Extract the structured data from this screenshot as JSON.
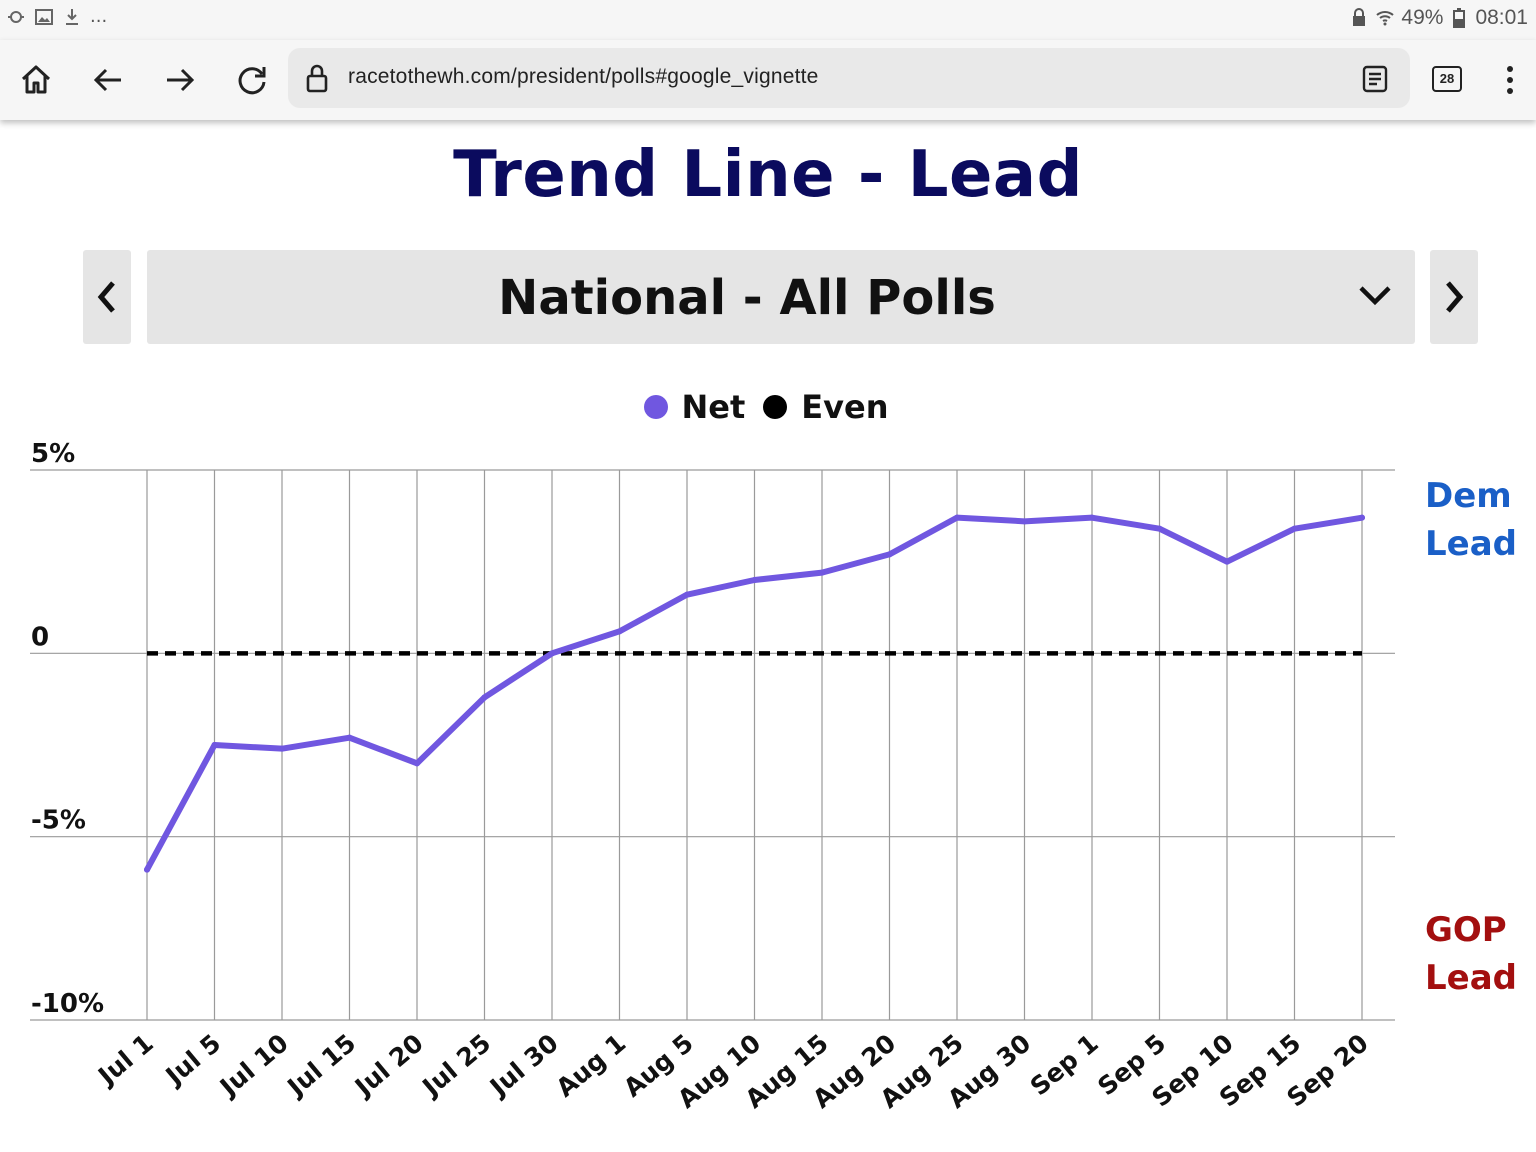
{
  "status_bar": {
    "left_icons": [
      "sync-icon",
      "image-icon",
      "download-icon"
    ],
    "more": "...",
    "battery_percent": "49%",
    "time": "08:01"
  },
  "browser": {
    "url": "racetothewh.com/president/polls#google_vignette",
    "tab_count": "28"
  },
  "page": {
    "title": "Trend Line - Lead",
    "selector": {
      "selected": "National - All Polls"
    },
    "side_labels": {
      "dem": {
        "line1": "Dem",
        "line2": "Lead",
        "color": "#1a5fc7"
      },
      "gop": {
        "line1": "GOP",
        "line2": "Lead",
        "color": "#a30f0f"
      }
    }
  },
  "chart_data": {
    "type": "line",
    "categories": [
      "Jul 1",
      "Jul 5",
      "Jul 10",
      "Jul 15",
      "Jul 20",
      "Jul 25",
      "Jul 30",
      "Aug 1",
      "Aug 5",
      "Aug 10",
      "Aug 15",
      "Aug 20",
      "Aug 25",
      "Aug 30",
      "Sep 1",
      "Sep 5",
      "Sep 10",
      "Sep 15",
      "Sep 20"
    ],
    "series": [
      {
        "name": "Net",
        "color": "#7057e0",
        "values": [
          -5.9,
          -2.5,
          -2.6,
          -2.3,
          -3.0,
          -1.2,
          0.0,
          0.6,
          1.6,
          2.0,
          2.2,
          2.7,
          3.7,
          3.6,
          3.7,
          3.4,
          2.5,
          3.4,
          3.7
        ]
      },
      {
        "name": "Even",
        "color": "#000000",
        "style": "dashed",
        "values": [
          0,
          0,
          0,
          0,
          0,
          0,
          0,
          0,
          0,
          0,
          0,
          0,
          0,
          0,
          0,
          0,
          0,
          0,
          0
        ]
      }
    ],
    "yticks": [
      {
        "value": 5,
        "label": "5%"
      },
      {
        "value": 0,
        "label": "0"
      },
      {
        "value": -5,
        "label": "-5%"
      },
      {
        "value": -10,
        "label": "-10%"
      }
    ],
    "ylim": [
      -10,
      5
    ],
    "grid": true,
    "legend_position": "top-center"
  }
}
